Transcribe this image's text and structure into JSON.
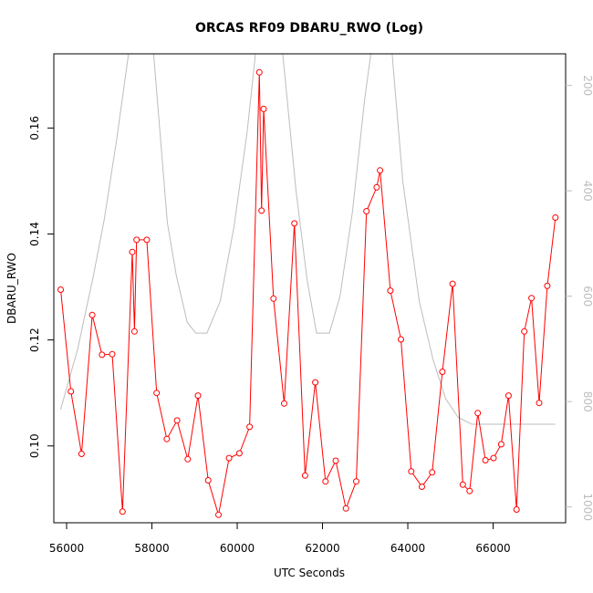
{
  "chart_data": {
    "type": "line",
    "title": "ORCAS RF09 DBARU_RWO (Log)",
    "xlabel": "UTC Seconds",
    "ylabel": "DBARU_RWO",
    "xlim": [
      55700,
      67700
    ],
    "ylim": [
      0.0855,
      0.174
    ],
    "y2lim": [
      1030,
      140
    ],
    "y2_reversed": true,
    "grid": false,
    "xticks": [
      56000,
      58000,
      60000,
      62000,
      64000,
      66000
    ],
    "xtick_labels": [
      "56000",
      "58000",
      "60000",
      "62000",
      "64000",
      "66000"
    ],
    "yticks": [
      0.1,
      0.12,
      0.14,
      0.16
    ],
    "ytick_labels": [
      "0.10",
      "0.12",
      "0.14",
      "0.16"
    ],
    "y2ticks": [
      200,
      400,
      600,
      800,
      1000
    ],
    "y2tick_labels": [
      "200",
      "400",
      "600",
      "800",
      "1000"
    ],
    "series": [
      {
        "color": "#ff0000",
        "axis": "left",
        "style": "line+open-circles",
        "points": [
          [
            55860,
            0.1295
          ],
          [
            56100,
            0.1103
          ],
          [
            56350,
            0.0985
          ],
          [
            56600,
            0.1247
          ],
          [
            56830,
            0.1172
          ],
          [
            57070,
            0.1173
          ],
          [
            57310,
            0.0876
          ],
          [
            57540,
            0.1366
          ],
          [
            57590,
            0.1216
          ],
          [
            57640,
            0.1389
          ],
          [
            57880,
            0.1389
          ],
          [
            58110,
            0.11
          ],
          [
            58350,
            0.1013
          ],
          [
            58590,
            0.1048
          ],
          [
            58840,
            0.0975
          ],
          [
            59080,
            0.1095
          ],
          [
            59320,
            0.0935
          ],
          [
            59560,
            0.087
          ],
          [
            59810,
            0.0977
          ],
          [
            60050,
            0.0986
          ],
          [
            60290,
            0.1036
          ],
          [
            60520,
            0.1705
          ],
          [
            60570,
            0.1444
          ],
          [
            60620,
            0.1636
          ],
          [
            60850,
            0.1278
          ],
          [
            61100,
            0.108
          ],
          [
            61340,
            0.142
          ],
          [
            61590,
            0.0944
          ],
          [
            61830,
            0.112
          ],
          [
            62070,
            0.0933
          ],
          [
            62310,
            0.0972
          ],
          [
            62550,
            0.0882
          ],
          [
            62790,
            0.0933
          ],
          [
            63030,
            0.1443
          ],
          [
            63270,
            0.1488
          ],
          [
            63350,
            0.152
          ],
          [
            63590,
            0.1293
          ],
          [
            63840,
            0.1201
          ],
          [
            64080,
            0.0952
          ],
          [
            64330,
            0.0923
          ],
          [
            64570,
            0.095
          ],
          [
            64810,
            0.114
          ],
          [
            65050,
            0.1306
          ],
          [
            65290,
            0.0927
          ],
          [
            65450,
            0.0915
          ],
          [
            65640,
            0.1062
          ],
          [
            65820,
            0.0973
          ],
          [
            66010,
            0.0977
          ],
          [
            66190,
            0.1003
          ],
          [
            66360,
            0.1095
          ],
          [
            66550,
            0.088
          ],
          [
            66730,
            0.1216
          ],
          [
            66900,
            0.1279
          ],
          [
            67080,
            0.1081
          ],
          [
            67270,
            0.1302
          ],
          [
            67460,
            0.1431
          ]
        ]
      },
      {
        "color": "#bdbdbd",
        "axis": "right",
        "style": "line",
        "points": [
          [
            55860,
            815
          ],
          [
            56260,
            700
          ],
          [
            56630,
            560
          ],
          [
            56880,
            455
          ],
          [
            57170,
            305
          ],
          [
            57520,
            100
          ],
          [
            58000,
            100
          ],
          [
            58360,
            460
          ],
          [
            58570,
            560
          ],
          [
            58830,
            650
          ],
          [
            59030,
            670
          ],
          [
            59290,
            670
          ],
          [
            59600,
            610
          ],
          [
            59920,
            470
          ],
          [
            60230,
            290
          ],
          [
            60480,
            100
          ],
          [
            61020,
            100
          ],
          [
            61380,
            400
          ],
          [
            61640,
            570
          ],
          [
            61860,
            670
          ],
          [
            62160,
            670
          ],
          [
            62410,
            600
          ],
          [
            62700,
            440
          ],
          [
            62990,
            225
          ],
          [
            63200,
            100
          ],
          [
            63590,
            100
          ],
          [
            63880,
            380
          ],
          [
            64270,
            610
          ],
          [
            64590,
            720
          ],
          [
            64890,
            795
          ],
          [
            65180,
            830
          ],
          [
            65500,
            843
          ],
          [
            66000,
            843
          ],
          [
            66600,
            843
          ],
          [
            67460,
            843
          ]
        ]
      }
    ]
  }
}
